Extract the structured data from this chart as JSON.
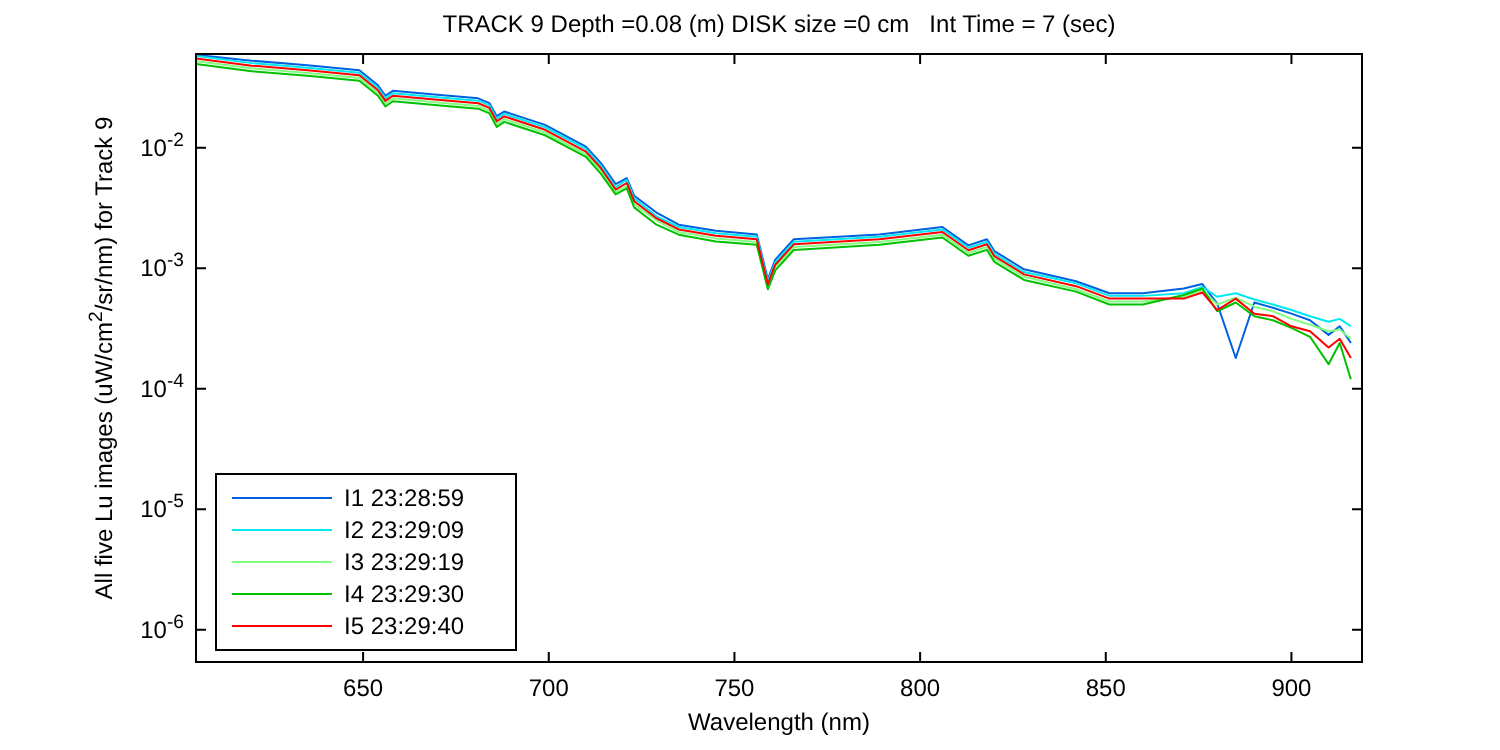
{
  "chart_data": {
    "type": "line",
    "title": "TRACK 9 Depth =0.08 (m) DISK size =0 cm   Int Time = 7 (sec)",
    "xlabel": "Wavelength (nm)",
    "ylabel": "All five Lu images (uW/cm$^{2}$/sr/nm) for Track 9",
    "log": "y",
    "grid": false,
    "legend": "bottom left",
    "marker": "none",
    "line_style": "solid",
    "xlim": [
      605,
      919
    ],
    "ylim": [
      5.4e-07,
      0.06
    ],
    "xticks": [
      650,
      700,
      750,
      800,
      850,
      900
    ],
    "yticks": [
      {
        "value": 0.01,
        "label": "10$^{-2}$"
      },
      {
        "value": 0.001,
        "label": "10$^{-3}$"
      },
      {
        "value": 0.0001,
        "label": "10$^{-4}$"
      },
      {
        "value": 1e-05,
        "label": "10$^{-5}$"
      },
      {
        "value": 1e-06,
        "label": "10$^{-6}$"
      }
    ],
    "x": [
      605,
      620,
      635,
      649,
      654,
      656,
      658,
      670,
      681,
      684,
      686,
      688,
      699,
      710,
      714,
      718,
      721,
      723,
      729,
      735,
      745,
      756,
      759,
      761,
      766,
      789,
      806,
      813,
      818,
      820,
      828,
      842,
      851,
      860,
      871,
      876,
      880,
      885,
      890,
      895,
      900,
      905,
      910,
      913,
      916
    ],
    "series": [
      {
        "name": "I1 23:28:59",
        "color": "#0060e0",
        "values": [
          0.059,
          0.0528,
          0.0484,
          0.044,
          0.033,
          0.027,
          0.0297,
          0.0275,
          0.0257,
          0.0235,
          0.0183,
          0.02,
          0.0155,
          0.0102,
          0.0075,
          0.005,
          0.0056,
          0.004,
          0.0029,
          0.0023,
          0.00205,
          0.00191,
          0.00081,
          0.00118,
          0.00174,
          0.00191,
          0.0022,
          0.00155,
          0.00174,
          0.00139,
          0.00098,
          0.00078,
          0.00062,
          0.00062,
          0.00068,
          0.00074,
          0.00051,
          0.00018,
          0.00052,
          0.00047,
          0.00042,
          0.00037,
          0.00028,
          0.00033,
          0.00024
        ]
      },
      {
        "name": "I2 23:29:09",
        "color": "#00e8f0",
        "values": [
          0.0578,
          0.0504,
          0.0462,
          0.042,
          0.0315,
          0.0257,
          0.0284,
          0.0263,
          0.0246,
          0.0225,
          0.0174,
          0.0191,
          0.0148,
          0.0098,
          0.0071,
          0.0047,
          0.0054,
          0.0038,
          0.0027,
          0.0022,
          0.00195,
          0.00183,
          0.00078,
          0.00112,
          0.00166,
          0.00183,
          0.0021,
          0.00148,
          0.00166,
          0.00132,
          0.00093,
          0.00075,
          0.00059,
          0.00059,
          0.00062,
          0.0007,
          0.00058,
          0.00062,
          0.00055,
          0.0005,
          0.00045,
          0.0004,
          0.00036,
          0.00038,
          0.00033
        ]
      },
      {
        "name": "I3 23:29:19",
        "color": "#80ff80",
        "values": [
          0.0523,
          0.0456,
          0.0418,
          0.038,
          0.0285,
          0.0233,
          0.0257,
          0.0238,
          0.0222,
          0.0203,
          0.0158,
          0.0173,
          0.0134,
          0.0088,
          0.0065,
          0.0043,
          0.0048,
          0.0034,
          0.0025,
          0.002,
          0.00177,
          0.00165,
          0.0007,
          0.00102,
          0.0015,
          0.00165,
          0.0019,
          0.00134,
          0.0015,
          0.0012,
          0.00085,
          0.00067,
          0.00053,
          0.00053,
          0.00058,
          0.00066,
          0.0005,
          0.00057,
          0.00048,
          0.00044,
          0.00038,
          0.00034,
          0.0003,
          0.00031,
          0.00026
        ]
      },
      {
        "name": "I4 23:29:30",
        "color": "#00c000",
        "values": [
          0.0495,
          0.0432,
          0.0396,
          0.036,
          0.027,
          0.022,
          0.0243,
          0.0225,
          0.0211,
          0.0193,
          0.0149,
          0.0164,
          0.0127,
          0.0084,
          0.0061,
          0.0041,
          0.0046,
          0.0032,
          0.0023,
          0.0019,
          0.00167,
          0.00157,
          0.00067,
          0.00096,
          0.00142,
          0.00157,
          0.0018,
          0.00127,
          0.00142,
          0.00113,
          0.0008,
          0.00064,
          0.0005,
          0.0005,
          0.0006,
          0.00068,
          0.00044,
          0.00052,
          0.0004,
          0.00037,
          0.00032,
          0.00027,
          0.00016,
          0.00024,
          0.00012
        ]
      },
      {
        "name": "I5 23:29:40",
        "color": "#ff0000",
        "values": [
          0.055,
          0.048,
          0.044,
          0.04,
          0.03,
          0.0245,
          0.027,
          0.025,
          0.0234,
          0.0214,
          0.0166,
          0.0182,
          0.0141,
          0.0093,
          0.0068,
          0.0045,
          0.0051,
          0.0036,
          0.0026,
          0.0021,
          0.00186,
          0.00174,
          0.00074,
          0.00107,
          0.00158,
          0.00174,
          0.002,
          0.00141,
          0.00158,
          0.00126,
          0.00089,
          0.00071,
          0.00056,
          0.00056,
          0.00056,
          0.00063,
          0.00045,
          0.00056,
          0.00042,
          0.0004,
          0.00033,
          0.0003,
          0.00022,
          0.00026,
          0.00018
        ]
      }
    ]
  }
}
